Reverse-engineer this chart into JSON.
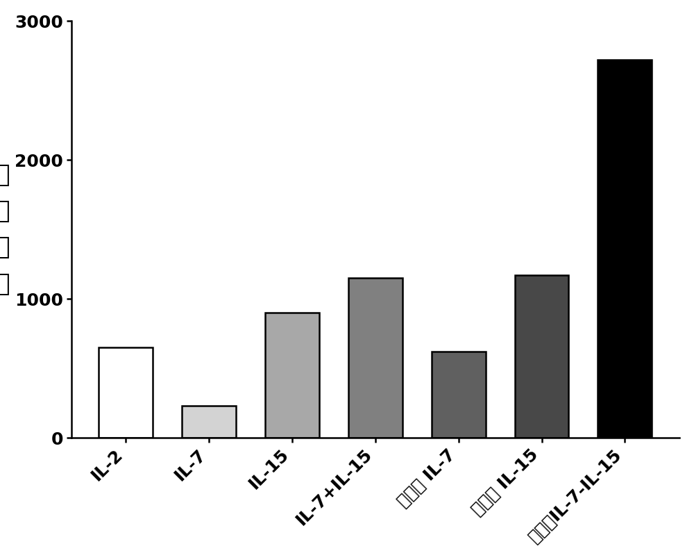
{
  "categories": [
    "IL-2",
    "IL-7",
    "IL-15",
    "IL-7+IL-15",
    "转基因 IL-7",
    "转基因 IL-15",
    "转基因IL-7-IL-15"
  ],
  "values": [
    650,
    230,
    900,
    1150,
    620,
    1170,
    2720
  ],
  "bar_colors": [
    "#ffffff",
    "#d3d3d3",
    "#a8a8a8",
    "#808080",
    "#606060",
    "#484848",
    "#000000"
  ],
  "bar_edgecolors": [
    "#000000",
    "#000000",
    "#000000",
    "#000000",
    "#000000",
    "#000000",
    "#000000"
  ],
  "ylabel_chars": [
    "扩",
    "增",
    "倍",
    "数"
  ],
  "ylim": [
    0,
    3000
  ],
  "yticks": [
    0,
    1000,
    2000,
    3000
  ],
  "bar_width": 0.65,
  "background_color": "#ffffff",
  "ylabel_fontsize": 26,
  "tick_fontsize": 18,
  "linewidth": 1.8
}
